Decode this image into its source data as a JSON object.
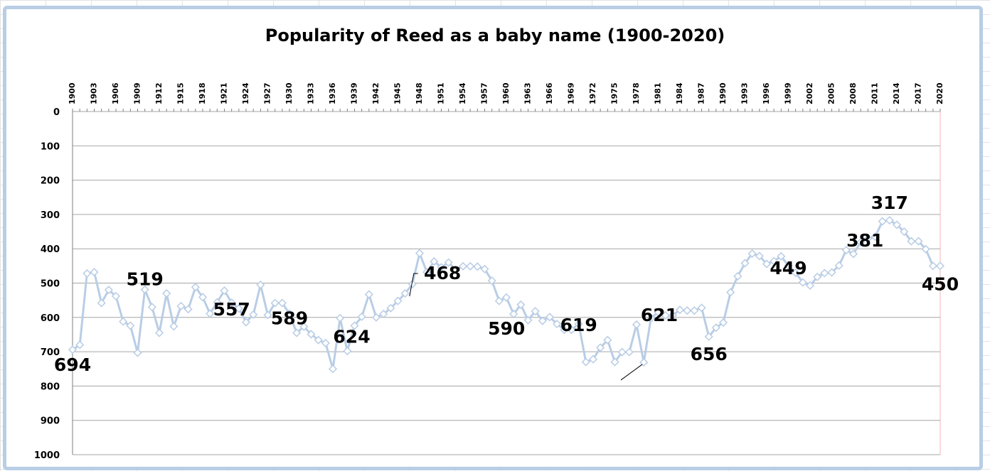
{
  "chart_data": {
    "type": "line",
    "title": "Popularity of Reed as a baby name (1900-2020)",
    "xlabel": "",
    "ylabel": "",
    "ylim": [
      0,
      1000
    ],
    "y_inverted": true,
    "y_ticks": [
      0,
      100,
      200,
      300,
      400,
      500,
      600,
      700,
      800,
      900,
      1000
    ],
    "x_ticks": [
      1900,
      1903,
      1906,
      1909,
      1912,
      1915,
      1918,
      1921,
      1924,
      1927,
      1930,
      1933,
      1936,
      1939,
      1942,
      1945,
      1948,
      1951,
      1954,
      1957,
      1960,
      1963,
      1966,
      1969,
      1972,
      1975,
      1978,
      1981,
      1984,
      1987,
      1990,
      1993,
      1996,
      1999,
      2002,
      2005,
      2008,
      2011,
      2014,
      2017,
      2020
    ],
    "xlim": [
      1900,
      2020
    ],
    "grid": true,
    "line_color": "#b9cde5",
    "marker": "diamond",
    "series": [
      {
        "x": [
          1900,
          1901,
          1902,
          1903,
          1904,
          1905,
          1906,
          1907,
          1908,
          1909,
          1910,
          1911,
          1912,
          1913,
          1914,
          1915,
          1916,
          1917,
          1918,
          1919,
          1920,
          1921,
          1922,
          1923,
          1924,
          1925,
          1926,
          1927,
          1928,
          1929,
          1930,
          1931,
          1932,
          1933,
          1934,
          1935,
          1936,
          1937,
          1938,
          1939,
          1940,
          1941,
          1942,
          1943,
          1944,
          1945,
          1946,
          1947,
          1948,
          1949,
          1950,
          1951,
          1952,
          1953,
          1954,
          1955,
          1956,
          1957,
          1958,
          1959,
          1960,
          1961,
          1962,
          1963,
          1964,
          1965,
          1966,
          1967,
          1968,
          1969,
          1970,
          1971,
          1972,
          1973,
          1974,
          1975,
          1976,
          1977,
          1978,
          1979,
          1980,
          1981,
          1982,
          1983,
          1984,
          1985,
          1986,
          1987,
          1988,
          1989,
          1990,
          1991,
          1992,
          1993,
          1994,
          1995,
          1996,
          1997,
          1998,
          1999,
          2000,
          2001,
          2002,
          2003,
          2004,
          2005,
          2006,
          2007,
          2008,
          2009,
          2010,
          2011,
          2012,
          2013,
          2014,
          2015,
          2016,
          2017,
          2018,
          2019,
          2020
        ],
        "y": [
          694,
          680,
          472,
          468,
          558,
          520,
          538,
          612,
          624,
          703,
          519,
          570,
          645,
          530,
          626,
          567,
          576,
          512,
          541,
          589,
          556,
          522,
          557,
          574,
          614,
          592,
          505,
          593,
          558,
          558,
          589,
          645,
          627,
          649,
          666,
          675,
          750,
          602,
          698,
          624,
          598,
          533,
          600,
          590,
          573,
          552,
          530,
          503,
          413,
          468,
          437,
          454,
          440,
          461,
          451,
          451,
          452,
          459,
          493,
          552,
          542,
          590,
          563,
          608,
          582,
          610,
          599,
          619,
          636,
          636,
          619,
          730,
          722,
          688,
          666,
          730,
          701,
          701,
          621,
          731,
          602,
          585,
          594,
          594,
          578,
          580,
          580,
          572,
          656,
          630,
          615,
          527,
          480,
          442,
          414,
          421,
          444,
          436,
          422,
          449,
          470,
          498,
          507,
          482,
          471,
          469,
          449,
          404,
          415,
          381,
          370,
          365,
          320,
          317,
          330,
          350,
          378,
          378,
          401,
          450,
          450
        ]
      }
    ],
    "data_labels": [
      {
        "x": 1900,
        "y": 694,
        "text": "694"
      },
      {
        "x": 1910,
        "y": 519,
        "text": "519"
      },
      {
        "x": 1922,
        "y": 557,
        "text": "557"
      },
      {
        "x": 1930,
        "y": 589,
        "text": "589"
      },
      {
        "x": 1939,
        "y": 624,
        "text": "624"
      },
      {
        "x": 1949,
        "y": 468,
        "text": "468"
      },
      {
        "x": 1961,
        "y": 590,
        "text": "590"
      },
      {
        "x": 1970,
        "y": 619,
        "text": "619"
      },
      {
        "x": 1978,
        "y": 621,
        "text": "621"
      },
      {
        "x": 1988,
        "y": 656,
        "text": "656"
      },
      {
        "x": 1999,
        "y": 449,
        "text": "449"
      },
      {
        "x": 2009,
        "y": 381,
        "text": "381"
      },
      {
        "x": 2013,
        "y": 317,
        "text": "317"
      },
      {
        "x": 2020,
        "y": 450,
        "text": "450"
      }
    ]
  }
}
